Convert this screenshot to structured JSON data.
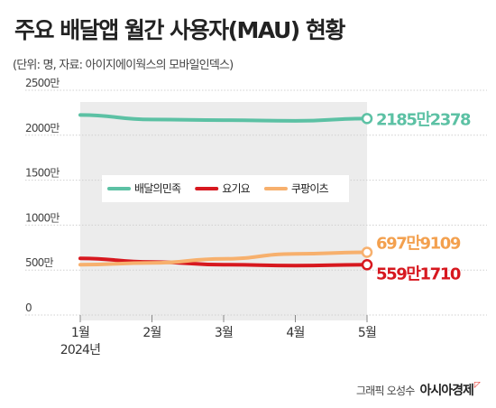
{
  "header": {
    "title": "주요 배달앱 월간 사용자(MAU) 현황",
    "subtitle": "(단위: 명, 자료: 아이지에이웍스의 모바일인덱스)"
  },
  "footer": {
    "credit": "그래픽 오성수",
    "brand": "아시아경제"
  },
  "chart_data": {
    "type": "line",
    "categories": [
      "1월",
      "2월",
      "3월",
      "4월",
      "5월"
    ],
    "category_sublabels": [
      "2024년",
      "",
      "",
      "",
      ""
    ],
    "y_ticks": [
      {
        "value": 0,
        "label": "0"
      },
      {
        "value": 500,
        "label": "500만"
      },
      {
        "value": 1000,
        "label": "1000만"
      },
      {
        "value": 1500,
        "label": "1500만"
      },
      {
        "value": 2000,
        "label": "2000만"
      },
      {
        "value": 2500,
        "label": "2500만"
      }
    ],
    "ylim": [
      0,
      2500
    ],
    "y_unit": "만 명",
    "grid": true,
    "legend_position": "center",
    "series": [
      {
        "name": "배달의민족",
        "color": "#5cc1a4",
        "values": [
          2225,
          2175,
          2168,
          2160,
          2185.2378
        ],
        "end_label": "2185만2378",
        "label_color": "#5cc1a4"
      },
      {
        "name": "요기요",
        "color": "#d7181f",
        "values": [
          630,
          590,
          560,
          550,
          559.171
        ],
        "end_label": "559만1710",
        "label_color": "#d7181f"
      },
      {
        "name": "쿠팡이츠",
        "color": "#f7b06d",
        "values": [
          560,
          580,
          625,
          680,
          697.9109
        ],
        "end_label": "697만9109",
        "label_color": "#f3a04e"
      }
    ]
  }
}
